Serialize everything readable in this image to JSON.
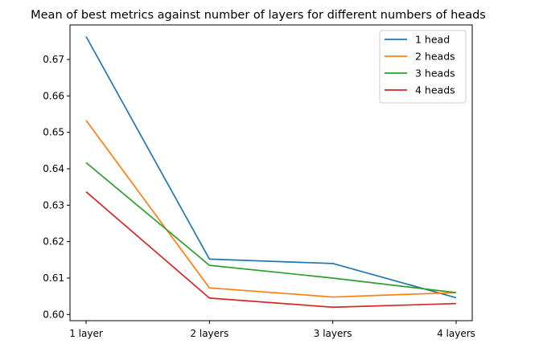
{
  "chart_data": {
    "type": "line",
    "title": "Mean of best metrics against number of layers for different numbers of heads",
    "xlabel": "",
    "ylabel": "",
    "categories": [
      "1 layer",
      "2 layers",
      "3 layers",
      "4 layers"
    ],
    "yticks": [
      0.6,
      0.61,
      0.62,
      0.63,
      0.64,
      0.65,
      0.66,
      0.67
    ],
    "ytick_labels": [
      "0.60",
      "0.61",
      "0.62",
      "0.63",
      "0.64",
      "0.65",
      "0.66",
      "0.67"
    ],
    "ylim": [
      0.5983,
      0.6795
    ],
    "grid": false,
    "legend_position": "top-right",
    "series": [
      {
        "name": "1 head",
        "color": "#1f77b4",
        "values": [
          0.6763,
          0.6152,
          0.614,
          0.6046
        ]
      },
      {
        "name": "2 heads",
        "color": "#ff7f0e",
        "values": [
          0.6533,
          0.6073,
          0.6048,
          0.606
        ]
      },
      {
        "name": "3 heads",
        "color": "#2ca02c",
        "values": [
          0.6417,
          0.6135,
          0.61,
          0.606
        ]
      },
      {
        "name": "4 heads",
        "color": "#d62728",
        "values": [
          0.6337,
          0.6045,
          0.602,
          0.603
        ]
      }
    ]
  }
}
